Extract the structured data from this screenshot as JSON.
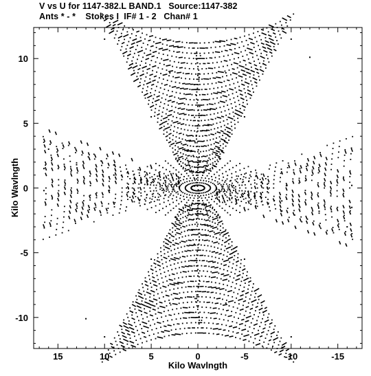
{
  "header": {
    "line1": "V vs U for 1147-382.L BAND.1   Source:1147-382",
    "line2": "Ants * - *    Stokes I  IF# 1 - 2   Chan# 1"
  },
  "chart_data": {
    "type": "scatter",
    "title": "V vs U for 1147-382.L BAND.1   Source:1147-382",
    "subtitle": "Ants * - *    Stokes I  IF# 1 - 2   Chan# 1",
    "xlabel": "Kilo Wavlngth",
    "ylabel": "Kilo Wavlngth",
    "xlim": [
      17.6,
      -17.6
    ],
    "ylim": [
      -12.4,
      12.4
    ],
    "x_ticks": [
      15,
      10,
      5,
      0,
      -5,
      -10,
      -15
    ],
    "x_tick_labels": [
      "15",
      "10",
      "5",
      "0",
      "-5",
      "-10",
      "-15"
    ],
    "y_ticks": [
      10,
      5,
      0,
      -5,
      -10
    ],
    "y_tick_labels": [
      "10",
      "5",
      "0",
      "-5",
      "-10"
    ],
    "grid": false,
    "marker_color": "#000000",
    "series": [
      {
        "values": [
          {
            "x": 10.0,
            "y": 11.5
          },
          {
            "x": 0.0,
            "y": 8.7
          },
          {
            "x": -10.0,
            "y": 11.5
          },
          {
            "x": 7.0,
            "y": 9.6
          },
          {
            "x": -7.0,
            "y": 9.6
          },
          {
            "x": 3.0,
            "y": 8.9
          },
          {
            "x": -3.0,
            "y": 8.9
          },
          {
            "x": 0.0,
            "y": 6.8
          },
          {
            "x": 0.0,
            "y": 4.8
          },
          {
            "x": 0.5,
            "y": 2.5
          },
          {
            "x": -0.5,
            "y": 1.2
          },
          {
            "x": 5.0,
            "y": 5.5
          },
          {
            "x": -5.0,
            "y": 5.5
          },
          {
            "x": 16.0,
            "y": 3.0
          },
          {
            "x": 16.5,
            "y": 1.5
          },
          {
            "x": 13.0,
            "y": 1.8
          },
          {
            "x": 9.0,
            "y": 1.0
          },
          {
            "x": 5.0,
            "y": 0.4
          },
          {
            "x": 2.0,
            "y": 0.1
          },
          {
            "x": -2.0,
            "y": -0.1
          },
          {
            "x": -5.0,
            "y": -0.4
          },
          {
            "x": -9.0,
            "y": -1.0
          },
          {
            "x": -13.0,
            "y": -1.8
          },
          {
            "x": -16.5,
            "y": -1.5
          },
          {
            "x": -16.0,
            "y": -3.0
          },
          {
            "x": -16.5,
            "y": 0.2
          },
          {
            "x": 16.5,
            "y": -0.2
          },
          {
            "x": 0.0,
            "y": -4.8
          },
          {
            "x": 0.0,
            "y": -6.8
          },
          {
            "x": 0.0,
            "y": -8.7
          },
          {
            "x": 5.0,
            "y": -5.5
          },
          {
            "x": -5.0,
            "y": -5.5
          },
          {
            "x": 3.0,
            "y": -8.9
          },
          {
            "x": -3.0,
            "y": -8.9
          },
          {
            "x": 7.0,
            "y": -9.6
          },
          {
            "x": -7.0,
            "y": -9.6
          },
          {
            "x": 10.0,
            "y": -11.5
          },
          {
            "x": -10.0,
            "y": -11.5
          },
          {
            "x": 12.0,
            "y": -10.1
          },
          {
            "x": -12.0,
            "y": 10.1
          }
        ]
      }
    ]
  }
}
